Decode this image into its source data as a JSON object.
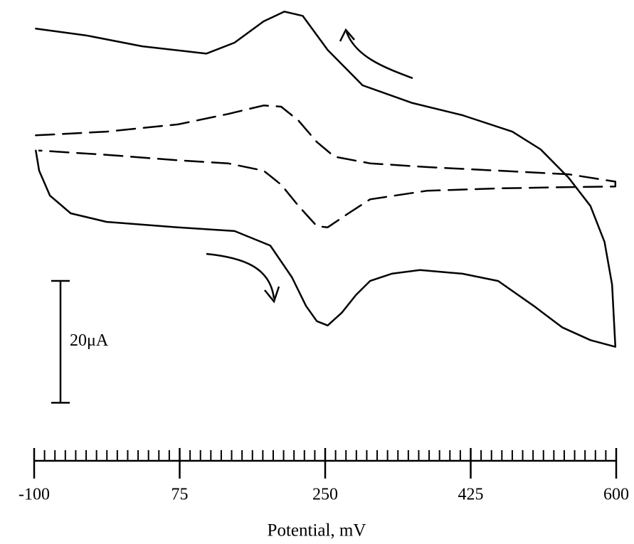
{
  "chart_data": {
    "type": "line",
    "xlabel": "Potential, mV",
    "xlim": [
      -100,
      600
    ],
    "xticks": [
      -100,
      75,
      250,
      425,
      600
    ],
    "xminorticks": [
      -87.5,
      -75,
      -62.5,
      -50,
      -37.5,
      -25,
      -12.5,
      0,
      12.5,
      25,
      37.5,
      50,
      62.5,
      87.5,
      100,
      112.5,
      125,
      137.5,
      150,
      162.5,
      175,
      187.5,
      200,
      212.5,
      225,
      237.5,
      262.5,
      275,
      287.5,
      300,
      312.5,
      325,
      337.5,
      350,
      362.5,
      375,
      387.5,
      400,
      412.5,
      437.5,
      450,
      462.5,
      475,
      487.5,
      500,
      512.5,
      525,
      537.5,
      550,
      562.5,
      575,
      587.5
    ],
    "ylim": [
      -40,
      30
    ],
    "scale_bar": {
      "value": 20,
      "label": "20μA"
    },
    "series": [
      {
        "color": "#000000",
        "dash": "solid",
        "x": [
          -98,
          -38,
          30,
          107,
          141,
          176,
          201,
          223,
          253,
          295,
          355,
          415,
          475,
          509,
          543,
          569,
          586,
          595,
          599,
          569,
          535,
          501,
          458,
          415,
          364,
          330,
          304,
          287,
          270,
          253,
          240,
          227,
          210,
          184,
          141,
          73,
          -13,
          -56,
          -81,
          -94,
          -98
        ],
        "values": [
          25.3,
          24.2,
          22.4,
          21.2,
          23.0,
          26.5,
          28.1,
          27.4,
          21.8,
          16.0,
          13.1,
          11.1,
          8.4,
          5.5,
          0.8,
          -3.8,
          -9.7,
          -16.7,
          -26.9,
          -25.8,
          -23.7,
          -20.2,
          -16.1,
          -14.9,
          -14.3,
          -14.9,
          -16.1,
          -18.4,
          -21.3,
          -23.4,
          -22.7,
          -20.2,
          -15.5,
          -10.3,
          -7.9,
          -7.3,
          -6.4,
          -5.0,
          -2.1,
          2.0,
          5.3
        ]
      },
      {
        "color": "#000000",
        "dash": "dashed",
        "x": [
          -98,
          -13,
          73,
          133,
          176,
          197,
          218,
          240,
          261,
          304,
          372,
          458,
          543,
          599,
          599,
          543,
          458,
          372,
          304,
          278,
          253,
          240,
          218,
          197,
          176,
          133,
          73,
          -13,
          -94
        ],
        "values": [
          7.8,
          8.4,
          9.6,
          11.3,
          12.7,
          12.5,
          10.2,
          6.7,
          4.3,
          3.2,
          2.6,
          2.0,
          1.4,
          0.2,
          -0.6,
          -0.7,
          -0.9,
          -1.3,
          -2.7,
          -5.0,
          -7.3,
          -7.1,
          -3.8,
          -0.3,
          2.0,
          3.2,
          3.7,
          4.6,
          5.3
        ]
      }
    ]
  }
}
